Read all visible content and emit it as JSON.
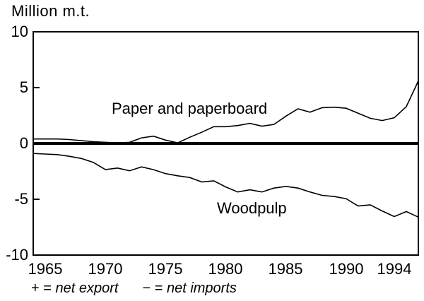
{
  "chart_data": {
    "type": "line",
    "title": "",
    "ylabel": "Million m.t.",
    "xlabel": "",
    "x": [
      1964,
      1965,
      1966,
      1967,
      1968,
      1969,
      1970,
      1971,
      1972,
      1973,
      1974,
      1975,
      1976,
      1977,
      1978,
      1979,
      1980,
      1981,
      1982,
      1983,
      1984,
      1985,
      1986,
      1987,
      1988,
      1989,
      1990,
      1991,
      1992,
      1993,
      1994,
      1995,
      1996
    ],
    "series": [
      {
        "name": "Paper and paperboard",
        "values": [
          0.4,
          0.4,
          0.4,
          0.35,
          0.25,
          0.15,
          0.1,
          0.05,
          0.1,
          0.5,
          0.65,
          0.3,
          0.05,
          0.55,
          1.0,
          1.5,
          1.5,
          1.6,
          1.8,
          1.55,
          1.7,
          2.45,
          3.1,
          2.8,
          3.2,
          3.25,
          3.15,
          2.7,
          2.25,
          2.05,
          2.3,
          3.3,
          5.6
        ]
      },
      {
        "name": "Woodpulp",
        "values": [
          -0.9,
          -0.95,
          -1.0,
          -1.15,
          -1.35,
          -1.7,
          -2.35,
          -2.2,
          -2.45,
          -2.1,
          -2.35,
          -2.7,
          -2.9,
          -3.05,
          -3.45,
          -3.35,
          -3.9,
          -4.35,
          -4.15,
          -4.35,
          -4.0,
          -3.85,
          -4.0,
          -4.35,
          -4.65,
          -4.75,
          -4.95,
          -5.6,
          -5.5,
          -6.05,
          -6.55,
          -6.1,
          -6.6
        ]
      }
    ],
    "xlim": [
      1964,
      1996
    ],
    "ylim": [
      -10,
      10
    ],
    "yticks": [
      10,
      5,
      0,
      -5,
      -10
    ],
    "xticks": [
      1965,
      1970,
      1975,
      1980,
      1985,
      1990,
      1994
    ],
    "grid": false,
    "zero_line": true,
    "legend_position": "inline-annotations",
    "annotations": [
      {
        "text": "Paper and paperboard"
      },
      {
        "text": "Woodpulp"
      }
    ],
    "color": "#000000",
    "background": "#ffffff"
  },
  "footnote": {
    "plus_symbol": "+",
    "plus_eq": "=",
    "plus_label": "net export",
    "minus_symbol": "−",
    "minus_eq": "=",
    "minus_label": "net imports"
  }
}
